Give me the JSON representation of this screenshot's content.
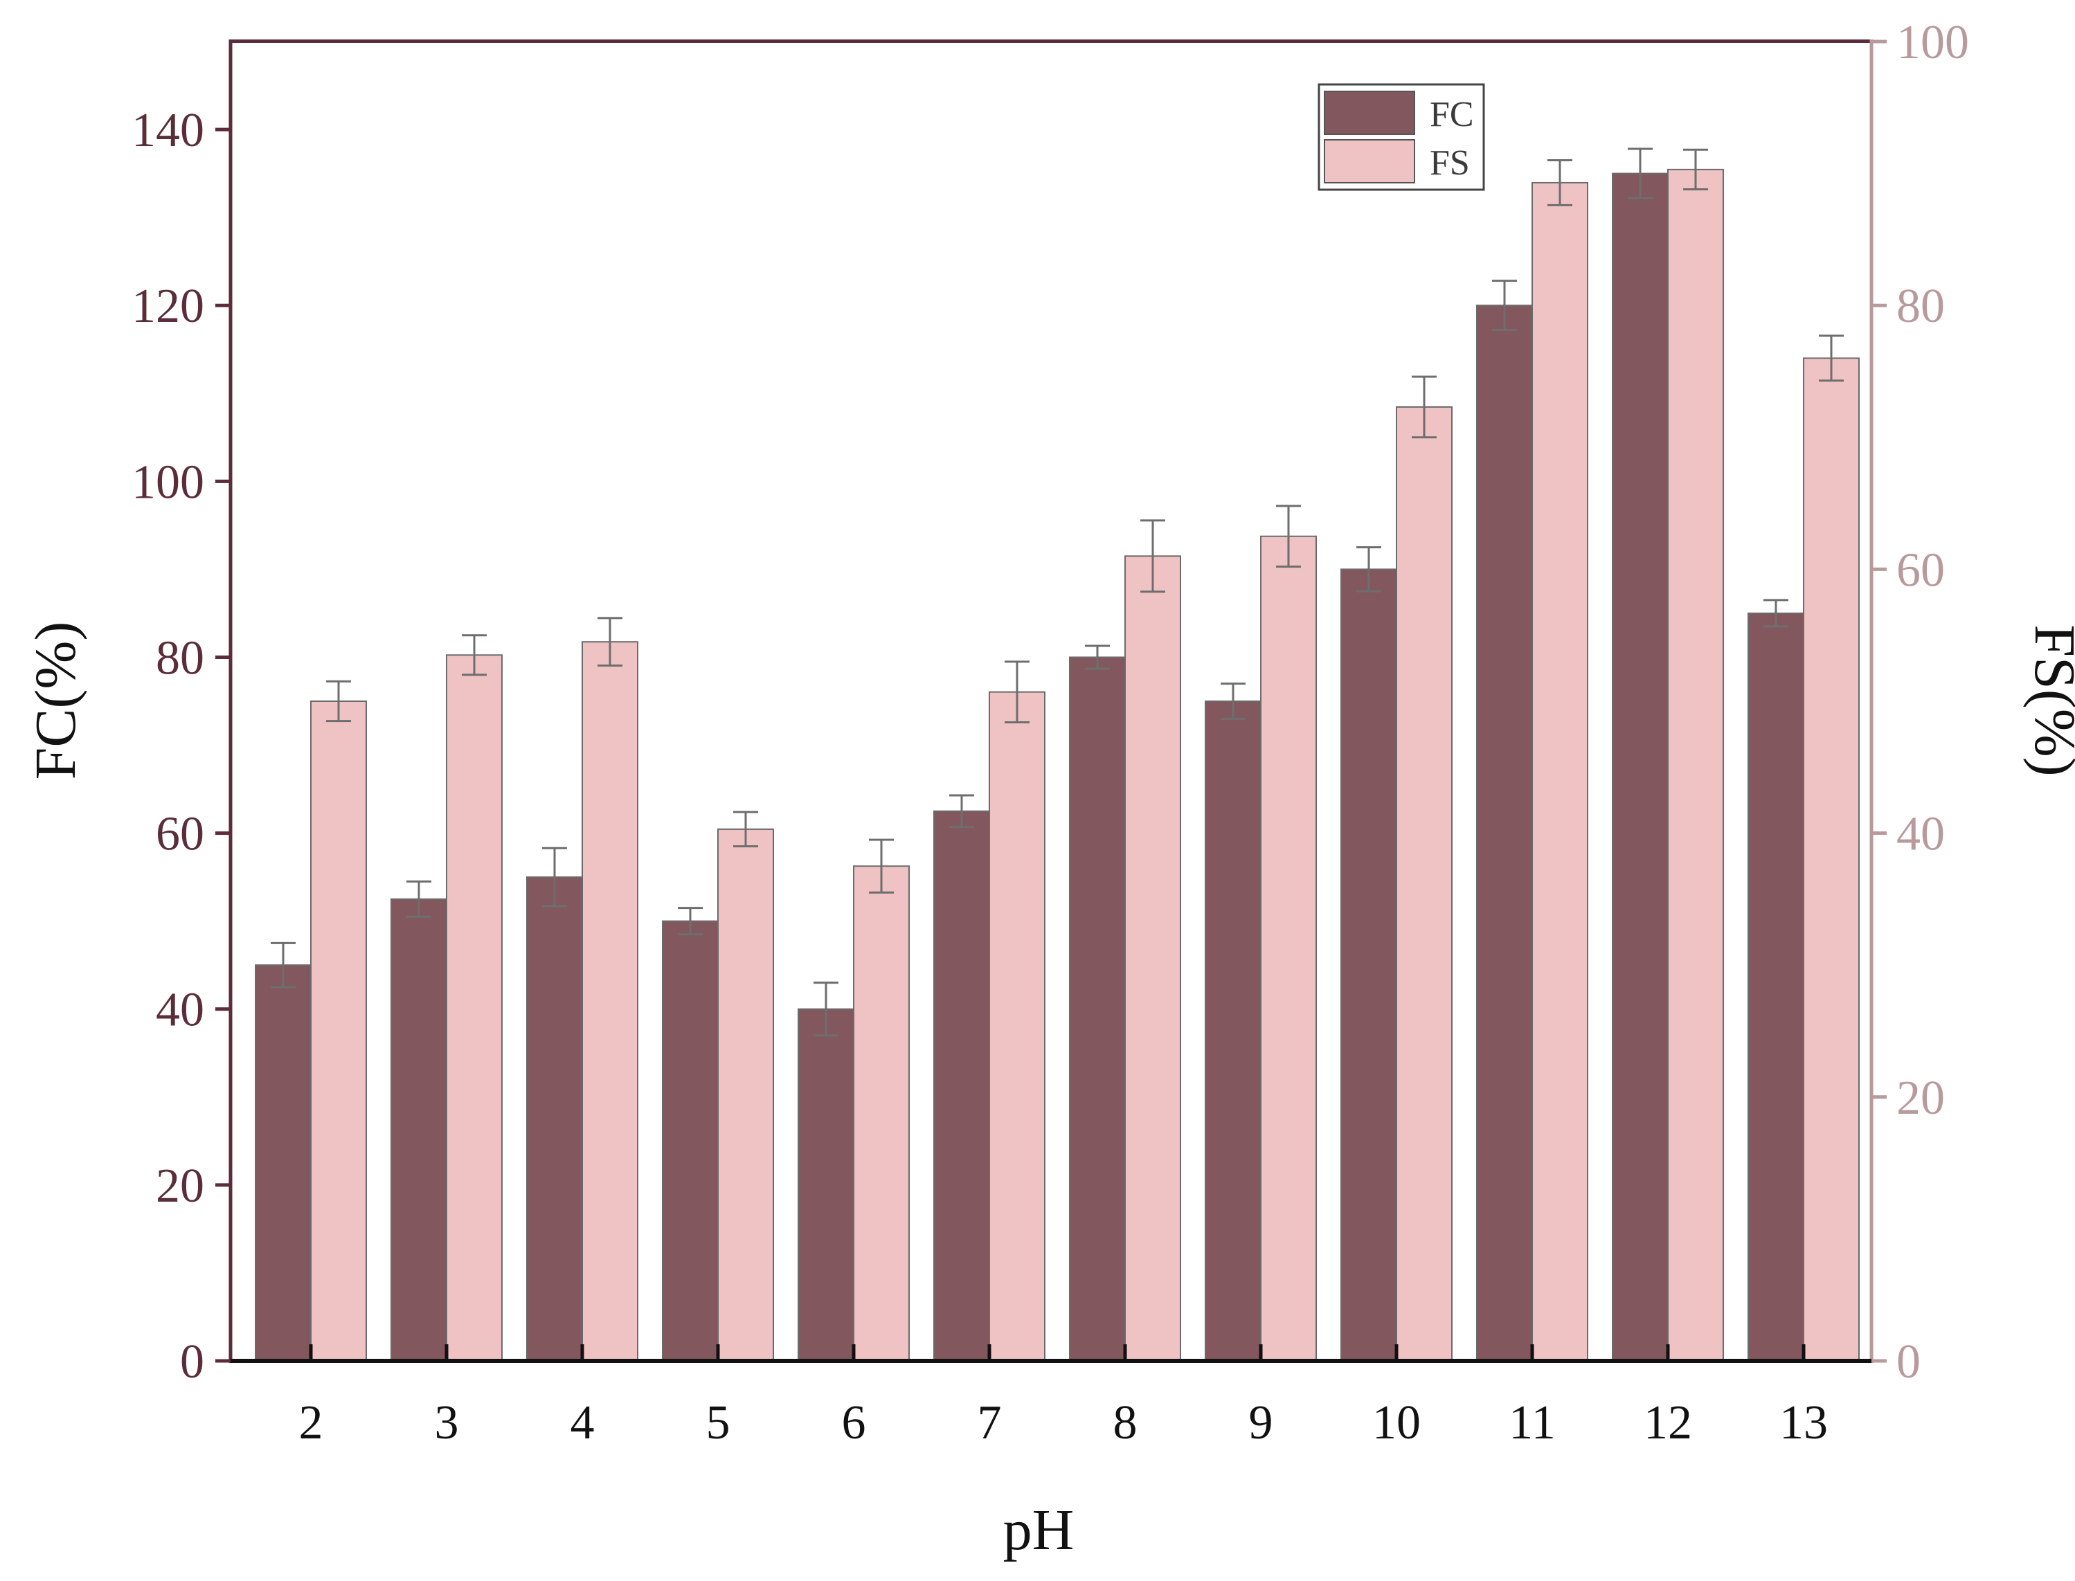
{
  "chart_data": {
    "type": "bar",
    "categories": [
      "2",
      "3",
      "4",
      "5",
      "6",
      "7",
      "8",
      "9",
      "10",
      "11",
      "12",
      "13"
    ],
    "series": [
      {
        "name": "FC",
        "axis": "left",
        "color": "#82575e",
        "values": [
          45,
          52.5,
          55,
          50,
          40,
          62.5,
          80,
          75,
          90,
          120,
          135,
          85
        ],
        "errors": [
          2.5,
          2,
          3.3,
          1.5,
          3,
          1.8,
          1.3,
          2,
          2.5,
          2.8,
          2.8,
          1.5
        ]
      },
      {
        "name": "FS",
        "axis": "right",
        "color": "#efc3c4",
        "values": [
          50,
          53.5,
          54.5,
          40.3,
          37.5,
          50.7,
          61,
          62.5,
          72.3,
          89.3,
          90.3,
          76
        ],
        "errors": [
          1.5,
          1.5,
          1.8,
          1.3,
          2,
          2.3,
          2.7,
          2.3,
          2.3,
          1.7,
          1.5,
          1.7
        ]
      }
    ],
    "xlabel": "pH",
    "ylabel": "FC(%)",
    "y2label": "FS(%)",
    "ylim": [
      0,
      150
    ],
    "y2lim": [
      0,
      100
    ],
    "yticks": [
      0,
      20,
      40,
      60,
      80,
      100,
      120,
      140
    ],
    "y2ticks": [
      0,
      20,
      40,
      60,
      80,
      100
    ],
    "legend_position": "top-right",
    "grid": false,
    "colors": {
      "left_axis": "#5a2d38",
      "right_axis": "#b89a9c",
      "error_bar": "#6e6e6e",
      "bar_edge": "#6b6b6b"
    }
  }
}
